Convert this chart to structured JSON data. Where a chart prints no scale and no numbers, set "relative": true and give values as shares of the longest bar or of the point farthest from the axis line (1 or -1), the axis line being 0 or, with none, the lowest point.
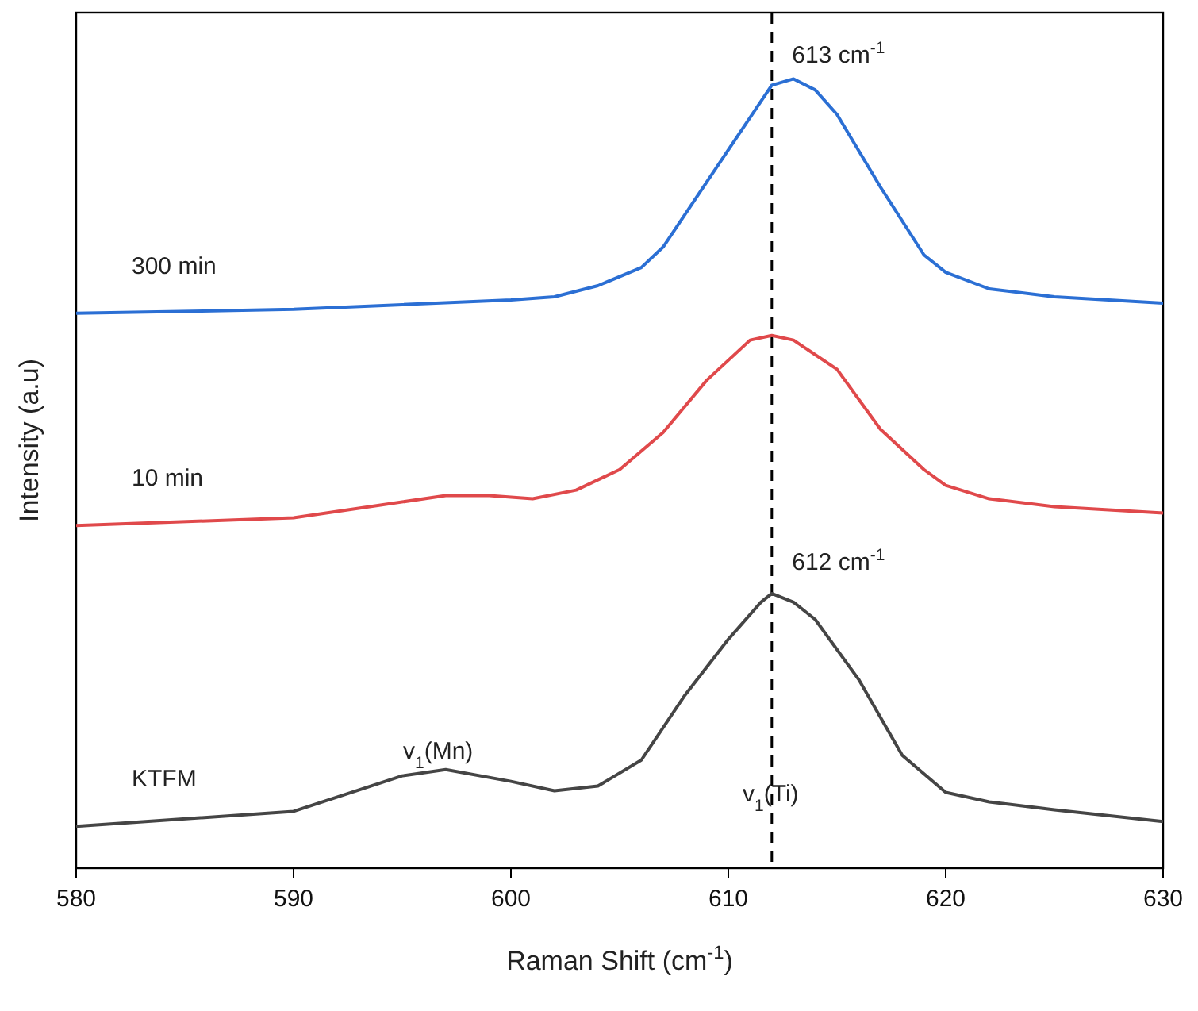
{
  "chart_data": {
    "type": "line",
    "xlabel": "Raman Shift (cm$^{-1}$)",
    "ylabel": "Intensity (a.u)",
    "relative": true,
    "xlim": [
      580,
      630
    ],
    "xticks": [
      580,
      590,
      600,
      610,
      620,
      630
    ],
    "grid": false,
    "marker": "none",
    "line_style": "solid",
    "series": [
      {
        "name": "300 min",
        "color": "#2b6fd4",
        "x": [
          580,
          590,
          595,
          600,
          602,
          604,
          606,
          607,
          609,
          611,
          612,
          613,
          614,
          615,
          617,
          619,
          620,
          622,
          625,
          630
        ],
        "values": [
          0.703,
          0.708,
          0.714,
          0.72,
          0.724,
          0.738,
          0.761,
          0.787,
          0.869,
          0.951,
          0.992,
          1,
          0.986,
          0.955,
          0.863,
          0.777,
          0.755,
          0.734,
          0.724,
          0.716
        ]
      },
      {
        "name": "10 min",
        "color": "#e0494b",
        "x": [
          580,
          590,
          594,
          597,
          599,
          601,
          603,
          605,
          607,
          609,
          611,
          612,
          613,
          615,
          617,
          619,
          620,
          622,
          625,
          630
        ],
        "values": [
          0.434,
          0.444,
          0.46,
          0.472,
          0.472,
          0.468,
          0.479,
          0.505,
          0.552,
          0.618,
          0.669,
          0.675,
          0.669,
          0.632,
          0.556,
          0.505,
          0.485,
          0.468,
          0.458,
          0.45
        ]
      },
      {
        "name": "KTFM",
        "color": "#454545",
        "x": [
          580,
          590,
          595,
          597,
          600,
          602,
          604,
          606,
          608,
          610,
          611.5,
          612,
          613,
          614,
          616,
          618,
          620,
          622,
          625,
          630
        ],
        "values": [
          0.053,
          0.072,
          0.117,
          0.125,
          0.11,
          0.098,
          0.104,
          0.137,
          0.219,
          0.29,
          0.337,
          0.348,
          0.337,
          0.315,
          0.239,
          0.143,
          0.096,
          0.084,
          0.074,
          0.059
        ]
      }
    ],
    "ref_lines": [
      {
        "axis": "x",
        "value": 612,
        "color": "#000000",
        "line_style": "dashed"
      }
    ],
    "annotations": [
      {
        "text": "613 cm$^{-1}$",
        "x": 612.2,
        "y": 1.004
      },
      {
        "text": "612 cm$^{-1}$",
        "x": 612.2,
        "y": 0.362
      },
      "v$_{1}$(Mn)",
      "v$_{1}$(Ti)"
    ]
  }
}
